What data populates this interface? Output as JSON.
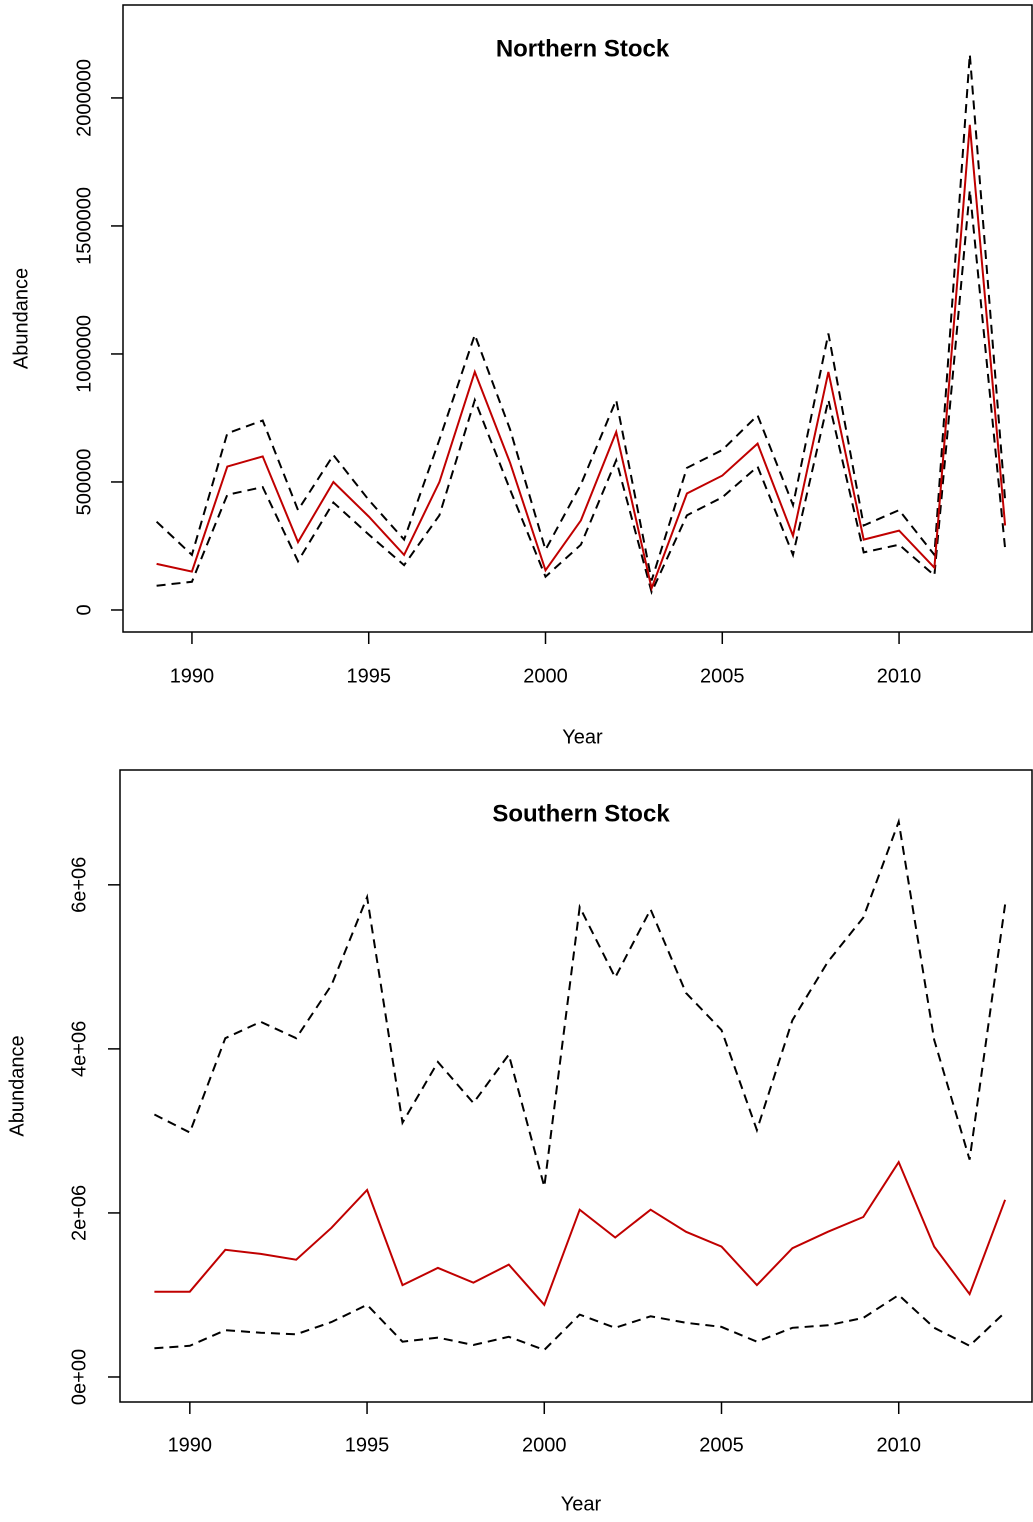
{
  "chart_data": [
    {
      "type": "line",
      "title": "Northern Stock",
      "xlabel": "Year",
      "ylabel": "Abundance",
      "x": [
        1989,
        1990,
        1991,
        1992,
        1993,
        1994,
        1995,
        1996,
        1997,
        1998,
        1999,
        2000,
        2001,
        2002,
        2003,
        2004,
        2005,
        2006,
        2007,
        2008,
        2009,
        2010,
        2011,
        2012,
        2013
      ],
      "series": [
        {
          "color": "#000000",
          "dashed": true,
          "values": [
            345000,
            215000,
            690000,
            740000,
            390000,
            605000,
            430000,
            275000,
            665000,
            1075000,
            705000,
            235000,
            490000,
            820000,
            115000,
            555000,
            625000,
            760000,
            410000,
            1080000,
            330000,
            390000,
            215000,
            2170000,
            430000
          ]
        },
        {
          "color": "#000000",
          "dashed": true,
          "values": [
            95000,
            110000,
            450000,
            480000,
            190000,
            420000,
            295000,
            175000,
            370000,
            820000,
            470000,
            130000,
            255000,
            585000,
            70000,
            370000,
            440000,
            560000,
            215000,
            820000,
            225000,
            255000,
            135000,
            1640000,
            240000
          ]
        },
        {
          "color": "#c00000",
          "dashed": false,
          "values": [
            180000,
            150000,
            560000,
            600000,
            265000,
            500000,
            365000,
            215000,
            500000,
            930000,
            575000,
            155000,
            350000,
            695000,
            85000,
            455000,
            525000,
            650000,
            290000,
            930000,
            275000,
            310000,
            165000,
            1895000,
            330000
          ]
        }
      ],
      "xlim": [
        1988.05,
        2013.76
      ],
      "xticks": [
        1990,
        1995,
        2000,
        2005,
        2010
      ],
      "ylim": [
        -86000,
        2363000
      ],
      "yticks": [
        0,
        500000,
        1000000,
        1500000,
        2000000
      ]
    },
    {
      "type": "line",
      "title": "Southern Stock",
      "xlabel": "Year",
      "ylabel": "Abundance",
      "x": [
        1989,
        1990,
        1991,
        1992,
        1993,
        1994,
        1995,
        1996,
        1997,
        1998,
        1999,
        2000,
        2001,
        2002,
        2003,
        2004,
        2005,
        2006,
        2007,
        2008,
        2009,
        2010,
        2011,
        2012,
        2013
      ],
      "series": [
        {
          "color": "#000000",
          "dashed": true,
          "values": [
            3200000,
            2980000,
            4130000,
            4330000,
            4130000,
            4780000,
            5850000,
            3100000,
            3840000,
            3340000,
            3930000,
            2320000,
            5730000,
            4870000,
            5700000,
            4680000,
            4230000,
            3010000,
            4350000,
            5060000,
            5600000,
            6770000,
            4110000,
            2650000,
            5760000
          ]
        },
        {
          "color": "#000000",
          "dashed": true,
          "values": [
            350000,
            380000,
            570000,
            540000,
            520000,
            670000,
            880000,
            430000,
            480000,
            390000,
            490000,
            330000,
            760000,
            600000,
            740000,
            660000,
            610000,
            430000,
            600000,
            630000,
            720000,
            1000000,
            600000,
            380000,
            790000
          ]
        },
        {
          "color": "#c00000",
          "dashed": false,
          "values": [
            1040000,
            1040000,
            1550000,
            1500000,
            1430000,
            1820000,
            2280000,
            1120000,
            1330000,
            1150000,
            1370000,
            880000,
            2040000,
            1700000,
            2040000,
            1770000,
            1590000,
            1120000,
            1570000,
            1770000,
            1950000,
            2620000,
            1590000,
            1010000,
            2160000
          ]
        }
      ],
      "xlim": [
        1988.03,
        2013.76
      ],
      "xticks": [
        1990,
        1995,
        2000,
        2005,
        2010
      ],
      "ylim": [
        -305000,
        7400000
      ],
      "yticks": [
        {
          "value": 0,
          "label": "0e+00"
        },
        {
          "value": 2000000,
          "label": "2e+06"
        },
        {
          "value": 4000000,
          "label": "4e+06"
        },
        {
          "value": 6000000,
          "label": "6e+06"
        }
      ]
    }
  ]
}
